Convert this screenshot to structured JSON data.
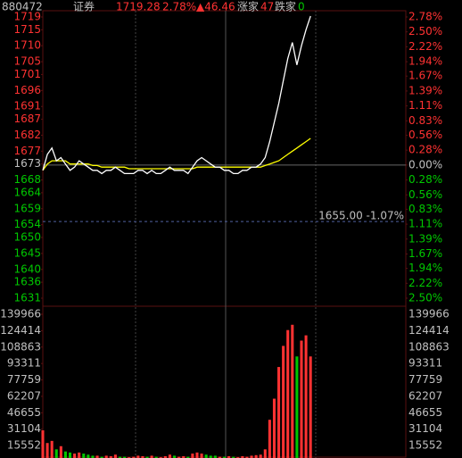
{
  "chart_data": {
    "type": "line",
    "header": {
      "code": "880472",
      "name": "证券",
      "price": "1719.28",
      "pct": "2.78%",
      "change": "▲46.46",
      "up_label": "涨家",
      "up_count": "47",
      "down_label": "跌家",
      "down_count": "0"
    },
    "x": [
      0,
      3,
      6,
      9,
      12,
      15,
      18,
      21,
      24,
      27,
      30,
      33,
      36,
      39,
      42,
      45,
      48,
      51,
      54,
      57,
      60,
      63,
      66,
      69,
      72,
      75,
      78,
      81,
      84,
      87,
      90,
      93,
      96,
      99,
      102,
      105,
      108,
      111,
      114,
      117,
      120,
      123,
      126,
      129,
      132,
      135,
      138,
      141,
      144,
      147,
      150,
      153,
      156,
      159,
      162,
      165,
      168,
      171,
      174,
      177
    ],
    "xlim": [
      0,
      240
    ],
    "series": [
      {
        "color": "#ffffff",
        "values": [
          1671,
          1676,
          1678,
          1674,
          1675,
          1673,
          1671,
          1672,
          1674,
          1673,
          1672,
          1671,
          1671,
          1670,
          1671,
          1671,
          1672,
          1671,
          1670,
          1670,
          1670,
          1671,
          1671,
          1670,
          1671,
          1670,
          1670,
          1671,
          1672,
          1671,
          1671,
          1671,
          1670,
          1672,
          1674,
          1675,
          1674,
          1673,
          1672,
          1672,
          1671,
          1671,
          1670,
          1670,
          1671,
          1671,
          1672,
          1672,
          1673,
          1675,
          1680,
          1686,
          1692,
          1699,
          1706,
          1711,
          1704,
          1710,
          1715,
          1719.28
        ]
      },
      {
        "color": "#ffff00",
        "values": [
          1671,
          1673,
          1674,
          1674,
          1674,
          1674,
          1673,
          1673,
          1673,
          1673,
          1673,
          1672.5,
          1672.5,
          1672,
          1672,
          1672,
          1672,
          1672,
          1672,
          1671.5,
          1671.5,
          1671.5,
          1671.5,
          1671.5,
          1671.5,
          1671.5,
          1671.5,
          1671.5,
          1671.5,
          1671.5,
          1671.5,
          1671.5,
          1671.5,
          1671.5,
          1672,
          1672,
          1672,
          1672,
          1672,
          1672,
          1672,
          1672,
          1672,
          1672,
          1672,
          1672,
          1672,
          1672,
          1672,
          1672.5,
          1673,
          1673.5,
          1674,
          1675,
          1676,
          1677,
          1678,
          1679,
          1680,
          1681
        ]
      }
    ],
    "ylim": [
      1631,
      1719
    ],
    "yticks": [
      1719,
      1715,
      1710,
      1705,
      1701,
      1696,
      1691,
      1687,
      1682,
      1677,
      1673,
      1668,
      1664,
      1659,
      1654,
      1650,
      1645,
      1640,
      1636,
      1631
    ],
    "y2lim": [
      -2.5,
      2.78
    ],
    "y2ticks": [
      {
        "value": 2.78,
        "label": "2.78%"
      },
      {
        "value": 2.5,
        "label": "2.50%"
      },
      {
        "value": 2.22,
        "label": "2.22%"
      },
      {
        "value": 1.94,
        "label": "1.94%"
      },
      {
        "value": 1.67,
        "label": "1.67%"
      },
      {
        "value": 1.39,
        "label": "1.39%"
      },
      {
        "value": 1.11,
        "label": "1.11%"
      },
      {
        "value": 0.83,
        "label": "0.83%"
      },
      {
        "value": 0.56,
        "label": "0.56%"
      },
      {
        "value": 0.28,
        "label": "0.28%"
      },
      {
        "value": 0,
        "label": "0.00%"
      },
      {
        "value": -0.28,
        "label": "0.28%"
      },
      {
        "value": -0.56,
        "label": "0.56%"
      },
      {
        "value": -0.83,
        "label": "0.83%"
      },
      {
        "value": -1.11,
        "label": "1.11%"
      },
      {
        "value": -1.39,
        "label": "1.39%"
      },
      {
        "value": -1.67,
        "label": "1.67%"
      },
      {
        "value": -1.94,
        "label": "1.94%"
      },
      {
        "value": -2.22,
        "label": "2.22%"
      },
      {
        "value": -2.5,
        "label": "2.50%"
      }
    ],
    "annotation": {
      "text": "1655.00 -1.07%",
      "y": 1655
    },
    "volume": {
      "up_color": "#ff3232",
      "down_color": "#00c800",
      "values": [
        30000,
        18000,
        20000,
        12000,
        15000,
        10000,
        9000,
        8000,
        9000,
        8000,
        7000,
        6000,
        6000,
        5000,
        6000,
        5500,
        7000,
        5000,
        5000,
        4500,
        5000,
        6000,
        5500,
        5000,
        6000,
        5000,
        4500,
        5500,
        7000,
        6000,
        5000,
        5500,
        5000,
        8000,
        9000,
        8000,
        7000,
        6000,
        6000,
        5000,
        5000,
        5500,
        5000,
        4500,
        5500,
        5000,
        6000,
        6500,
        7000,
        12000,
        40000,
        60000,
        90000,
        110000,
        125000,
        130000,
        100000,
        115000,
        120000,
        100000
      ],
      "ylim": [
        0,
        139966
      ],
      "yticks": [
        139966,
        124414,
        108863,
        93311,
        77759,
        62207,
        46655,
        31104,
        15552
      ]
    }
  }
}
